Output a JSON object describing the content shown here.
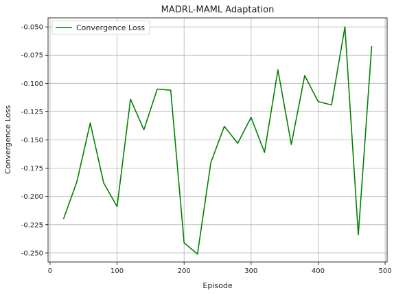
{
  "chart_data": {
    "type": "line",
    "title": "MADRL-MAML Adaptation",
    "xlabel": "Episode",
    "ylabel": "Convergence Loss",
    "xlim": [
      -3,
      503
    ],
    "ylim": [
      -0.258,
      -0.042
    ],
    "x_ticks": [
      0,
      100,
      200,
      300,
      400,
      500
    ],
    "y_ticks": [
      -0.05,
      -0.075,
      -0.1,
      -0.125,
      -0.15,
      -0.175,
      -0.2,
      -0.225,
      -0.25
    ],
    "x_tick_labels": [
      "0",
      "100",
      "200",
      "300",
      "400",
      "500"
    ],
    "y_tick_labels": [
      "-0.050",
      "-0.075",
      "-0.100",
      "-0.125",
      "-0.150",
      "-0.175",
      "-0.200",
      "-0.225",
      "-0.250"
    ],
    "grid": true,
    "legend_position": "top-left",
    "series": [
      {
        "name": "Convergence Loss",
        "color": "#008000",
        "x": [
          20,
          40,
          60,
          80,
          100,
          120,
          140,
          160,
          180,
          200,
          220,
          240,
          260,
          280,
          300,
          320,
          340,
          360,
          380,
          400,
          420,
          440,
          460,
          480
        ],
        "y": [
          -0.22,
          -0.187,
          -0.135,
          -0.188,
          -0.209,
          -0.114,
          -0.141,
          -0.105,
          -0.106,
          -0.241,
          -0.251,
          -0.17,
          -0.138,
          -0.153,
          -0.13,
          -0.161,
          -0.088,
          -0.154,
          -0.093,
          -0.116,
          -0.119,
          -0.05,
          -0.234,
          -0.067
        ]
      }
    ]
  }
}
